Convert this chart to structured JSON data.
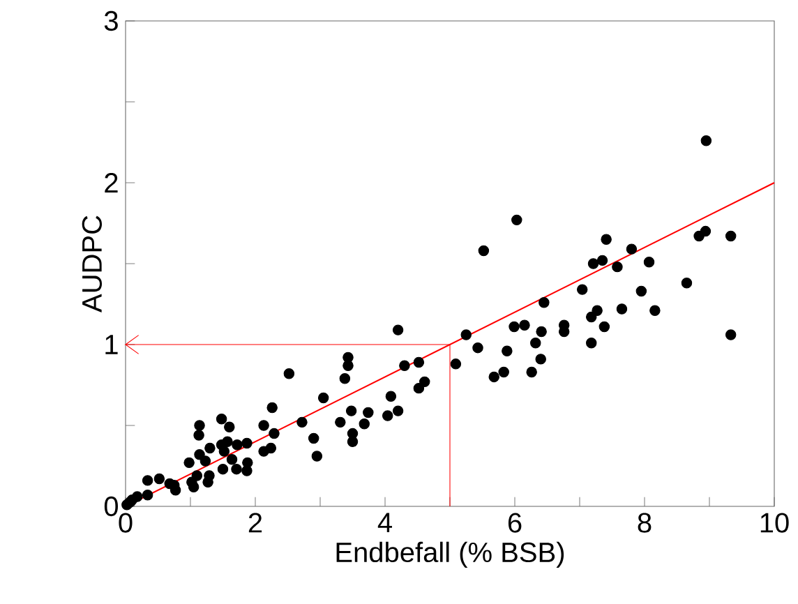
{
  "chart_data": {
    "type": "scatter",
    "xlabel": "Endbefall (% BSB)",
    "ylabel": "AUDPC",
    "xlim": [
      0,
      10
    ],
    "ylim": [
      0,
      3
    ],
    "xticks": [
      0,
      {
        "value": 1,
        "label": null
      },
      2,
      {
        "value": 3,
        "label": null
      },
      4,
      {
        "value": 5,
        "label": null
      },
      6,
      {
        "value": 7,
        "label": null
      },
      8,
      {
        "value": 9,
        "label": null
      },
      10
    ],
    "yticks": [
      0,
      {
        "value": 0.5,
        "label": null
      },
      1,
      {
        "value": 1.5,
        "label": null
      },
      2,
      {
        "value": 2.5,
        "label": null
      },
      3
    ],
    "grid": false,
    "series": [
      {
        "marker": "circle",
        "color": "#000000",
        "x": [
          8.95,
          6.03,
          5.52,
          8.84,
          8.94,
          9.33,
          7.41,
          7.8,
          7.21,
          7.35,
          7.58,
          8.07,
          7.04,
          7.95,
          8.65,
          6.45,
          7.27,
          7.65,
          8.16,
          7.18,
          5.99,
          6.15,
          6.41,
          6.76,
          6.76,
          7.38,
          9.33,
          7.18,
          6.32,
          5.25,
          5.43,
          5.88,
          6.4,
          5.09,
          5.68,
          5.83,
          6.26,
          4.2,
          3.43,
          3.43,
          3.38,
          4.3,
          4.52,
          4.52,
          4.61,
          2.52,
          3.05,
          4.09,
          4.2,
          4.04,
          3.48,
          3.74,
          3.68,
          3.31,
          2.72,
          2.26,
          2.13,
          2.29,
          2.24,
          2.13,
          3.5,
          3.5,
          2.9,
          2.95,
          1.48,
          1.6,
          1.14,
          1.13,
          1.48,
          1.57,
          1.72,
          1.87,
          1.3,
          1.14,
          0.98,
          1.23,
          1.52,
          1.64,
          1.88,
          1.5,
          1.71,
          1.87,
          1.29,
          1.1,
          1.02,
          1.27,
          1.05,
          0.34,
          0.52,
          0.68,
          0.77,
          0.75,
          0.34,
          0.18,
          0.1,
          0.02,
          0.08,
          0.05
        ],
        "values": [
          2.26,
          1.77,
          1.58,
          1.67,
          1.7,
          1.67,
          1.65,
          1.59,
          1.5,
          1.52,
          1.48,
          1.51,
          1.34,
          1.33,
          1.38,
          1.26,
          1.21,
          1.22,
          1.21,
          1.17,
          1.11,
          1.12,
          1.08,
          1.12,
          1.08,
          1.11,
          1.06,
          1.01,
          1.01,
          1.06,
          0.98,
          0.96,
          0.91,
          0.88,
          0.8,
          0.83,
          0.83,
          1.09,
          0.92,
          0.87,
          0.79,
          0.87,
          0.89,
          0.73,
          0.77,
          0.82,
          0.67,
          0.68,
          0.59,
          0.56,
          0.59,
          0.58,
          0.51,
          0.52,
          0.52,
          0.61,
          0.5,
          0.45,
          0.36,
          0.34,
          0.45,
          0.4,
          0.42,
          0.31,
          0.54,
          0.49,
          0.5,
          0.44,
          0.38,
          0.4,
          0.38,
          0.39,
          0.36,
          0.32,
          0.27,
          0.28,
          0.34,
          0.29,
          0.27,
          0.23,
          0.23,
          0.22,
          0.19,
          0.19,
          0.15,
          0.15,
          0.12,
          0.16,
          0.17,
          0.14,
          0.1,
          0.13,
          0.07,
          0.06,
          0.04,
          0.01,
          0.03,
          0.02
        ]
      },
      {
        "type": "line",
        "color": "#ff0000",
        "x": [
          0,
          10
        ],
        "values": [
          0,
          2
        ],
        "marker": "none",
        "line_style": "solid"
      }
    ],
    "ref_lines": [
      {
        "axis": "x",
        "value": 5,
        "color": "#ff0000"
      },
      {
        "axis": "y",
        "value": 1,
        "color": "#ff0000"
      }
    ]
  }
}
